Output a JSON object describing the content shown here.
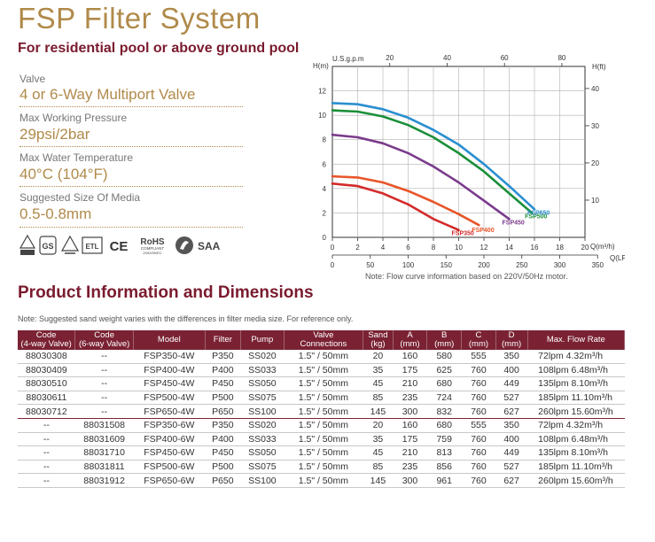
{
  "title": "FSP Filter System",
  "subtitle": "For residential pool or above ground pool",
  "specs": [
    {
      "label": "Valve",
      "value": "4 or 6-Way Multiport Valve"
    },
    {
      "label": "Max Working Pressure",
      "value": "29psi/2bar"
    },
    {
      "label": "Max Water Temperature",
      "value": "40°C (104°F)"
    },
    {
      "label": "Suggested Size Of Media",
      "value": "0.5-0.8mm"
    }
  ],
  "cert_icons": [
    "certification-mark-1-icon",
    "gs-mark-icon",
    "certification-mark-2-icon",
    "etl-mark-icon",
    "ce-mark-icon",
    "rohs-compliant-icon",
    "saa-mark-icon"
  ],
  "cert_text": {
    "ce": "CE",
    "rohs": "RoHS",
    "rohs_sub": "COMPLIANT",
    "rohs_sub2": "2002/95/EC",
    "saa": "SAA",
    "gs": "GS",
    "etl": "ETL"
  },
  "chart_data": {
    "type": "line",
    "x_unit_top": "U.S.g.p.m",
    "x_unit_bottom_1": "Q(m³/h)",
    "x_unit_bottom_2": "Q(LPM)",
    "y_unit_left": "H(m)",
    "y_unit_right": "H(ft)",
    "xlim_m3h": [
      0,
      20
    ],
    "ylim_m": [
      0,
      14
    ],
    "ticks_m3h": [
      "0",
      "2",
      "4",
      "6",
      "8",
      "10",
      "12",
      "14",
      "16",
      "18",
      "20"
    ],
    "ticks_lpm": [
      "0",
      "50",
      "100",
      "150",
      "200",
      "250",
      "300",
      "350"
    ],
    "ticks_gpm": [
      "20",
      "40",
      "60",
      "80"
    ],
    "ticks_m": [
      "0",
      "2",
      "4",
      "6",
      "8",
      "10",
      "12"
    ],
    "ticks_ft": [
      "10",
      "20",
      "30",
      "40"
    ],
    "grid": true,
    "series": [
      {
        "name": "FSP350",
        "color": "#d42a2a",
        "x": [
          0,
          2,
          4,
          6,
          8,
          10
        ],
        "y": [
          4.4,
          4.2,
          3.6,
          2.7,
          1.5,
          0.6
        ]
      },
      {
        "name": "FSP400",
        "color": "#e8552a",
        "x": [
          0,
          2,
          4,
          6,
          8,
          10,
          11.6
        ],
        "y": [
          5.0,
          4.9,
          4.5,
          3.8,
          2.9,
          1.9,
          1.0
        ]
      },
      {
        "name": "FSP450",
        "color": "#7a3b8c",
        "x": [
          0,
          2,
          4,
          6,
          8,
          10,
          12,
          14
        ],
        "y": [
          8.4,
          8.2,
          7.7,
          6.9,
          5.8,
          4.5,
          3.0,
          1.5
        ]
      },
      {
        "name": "FSP500",
        "color": "#1a8f3a",
        "x": [
          0,
          2,
          4,
          6,
          8,
          10,
          12,
          14,
          15.8
        ],
        "y": [
          10.4,
          10.3,
          9.9,
          9.2,
          8.2,
          6.9,
          5.4,
          3.6,
          2.0
        ]
      },
      {
        "name": "FSP650",
        "color": "#2a8fd0",
        "x": [
          0,
          2,
          4,
          6,
          8,
          10,
          12,
          14,
          16
        ],
        "y": [
          11.0,
          10.9,
          10.5,
          9.8,
          8.8,
          7.6,
          6.0,
          4.2,
          2.3
        ]
      }
    ]
  },
  "chart_note": "Note: Flow curve information based on 220V/50Hz motor.",
  "section_title": "Product Information and Dimensions",
  "table_note": "Note: Suggested sand weight varies with the differences in filter media size. For reference only.",
  "table": {
    "headers": [
      "Code\n(4-way Valve)",
      "Code\n(6-way Valve)",
      "Model",
      "Filter",
      "Pump",
      "Valve\nConnections",
      "Sand\n(kg)",
      "A\n(mm)",
      "B\n(mm)",
      "C\n(mm)",
      "D\n(mm)",
      "Max. Flow Rate"
    ],
    "rows": [
      [
        "88030308",
        "--",
        "FSP350-4W",
        "P350",
        "SS020",
        "1.5\" / 50mm",
        "20",
        "160",
        "580",
        "555",
        "350",
        "72lpm  4.32m³/h"
      ],
      [
        "88030409",
        "--",
        "FSP400-4W",
        "P400",
        "SS033",
        "1.5\" / 50mm",
        "35",
        "175",
        "625",
        "760",
        "400",
        "108lpm  6.48m³/h"
      ],
      [
        "88030510",
        "--",
        "FSP450-4W",
        "P450",
        "SS050",
        "1.5\" / 50mm",
        "45",
        "210",
        "680",
        "760",
        "449",
        "135lpm  8.10m³/h"
      ],
      [
        "88030611",
        "--",
        "FSP500-4W",
        "P500",
        "SS075",
        "1.5\" / 50mm",
        "85",
        "235",
        "724",
        "760",
        "527",
        "185lpm 11.10m³/h"
      ],
      [
        "88030712",
        "--",
        "FSP650-4W",
        "P650",
        "SS100",
        "1.5\" / 50mm",
        "145",
        "300",
        "832",
        "760",
        "627",
        "260lpm 15.60m³/h"
      ],
      [
        "--",
        "88031508",
        "FSP350-6W",
        "P350",
        "SS020",
        "1.5\" / 50mm",
        "20",
        "160",
        "680",
        "555",
        "350",
        "72lpm  4.32m³/h"
      ],
      [
        "--",
        "88031609",
        "FSP400-6W",
        "P400",
        "SS033",
        "1.5\" / 50mm",
        "35",
        "175",
        "759",
        "760",
        "400",
        "108lpm  6.48m³/h"
      ],
      [
        "--",
        "88031710",
        "FSP450-6W",
        "P450",
        "SS050",
        "1.5\" / 50mm",
        "45",
        "210",
        "813",
        "760",
        "449",
        "135lpm  8.10m³/h"
      ],
      [
        "--",
        "88031811",
        "FSP500-6W",
        "P500",
        "SS075",
        "1.5\" / 50mm",
        "85",
        "235",
        "856",
        "760",
        "527",
        "185lpm 11.10m³/h"
      ],
      [
        "--",
        "88031912",
        "FSP650-6W",
        "P650",
        "SS100",
        "1.5\" / 50mm",
        "145",
        "300",
        "961",
        "760",
        "627",
        "260lpm 15.60m³/h"
      ]
    ]
  },
  "colors": {
    "accent": "#b08a4a",
    "brand": "#7a1b2e",
    "header_bg": "#7a2233"
  }
}
